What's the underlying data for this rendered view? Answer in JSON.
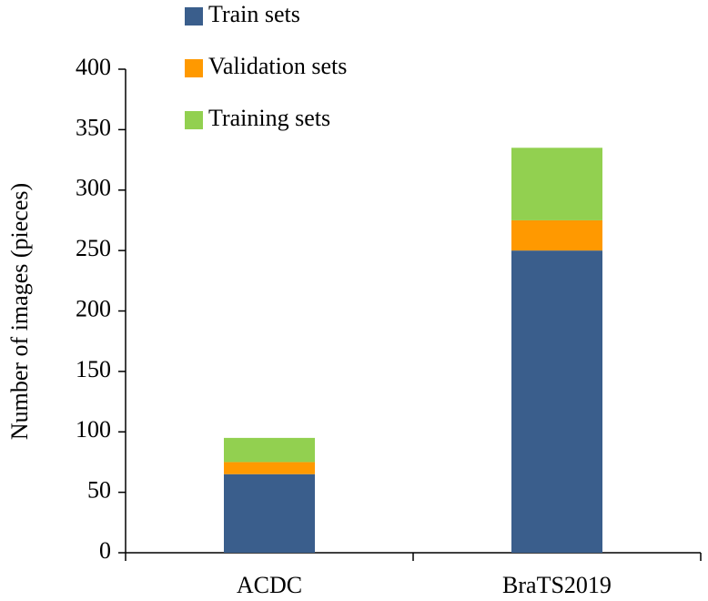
{
  "chart_data": {
    "type": "stacked_bar",
    "y_label": "Number of images (pieces)",
    "categories": [
      "ACDC",
      "BraTS2019"
    ],
    "series": [
      {
        "name": "Train sets",
        "color": "#3a5e8c",
        "values": [
          65,
          250
        ]
      },
      {
        "name": "Validation sets",
        "color": "#ff9900",
        "values": [
          10,
          25
        ]
      },
      {
        "name": "Training sets",
        "color": "#92d050",
        "values": [
          20,
          60
        ]
      }
    ],
    "ylim": [
      0,
      400
    ],
    "yticks": [
      0,
      50,
      100,
      150,
      200,
      250,
      300,
      350,
      400
    ],
    "grid": false,
    "legend": "top"
  }
}
